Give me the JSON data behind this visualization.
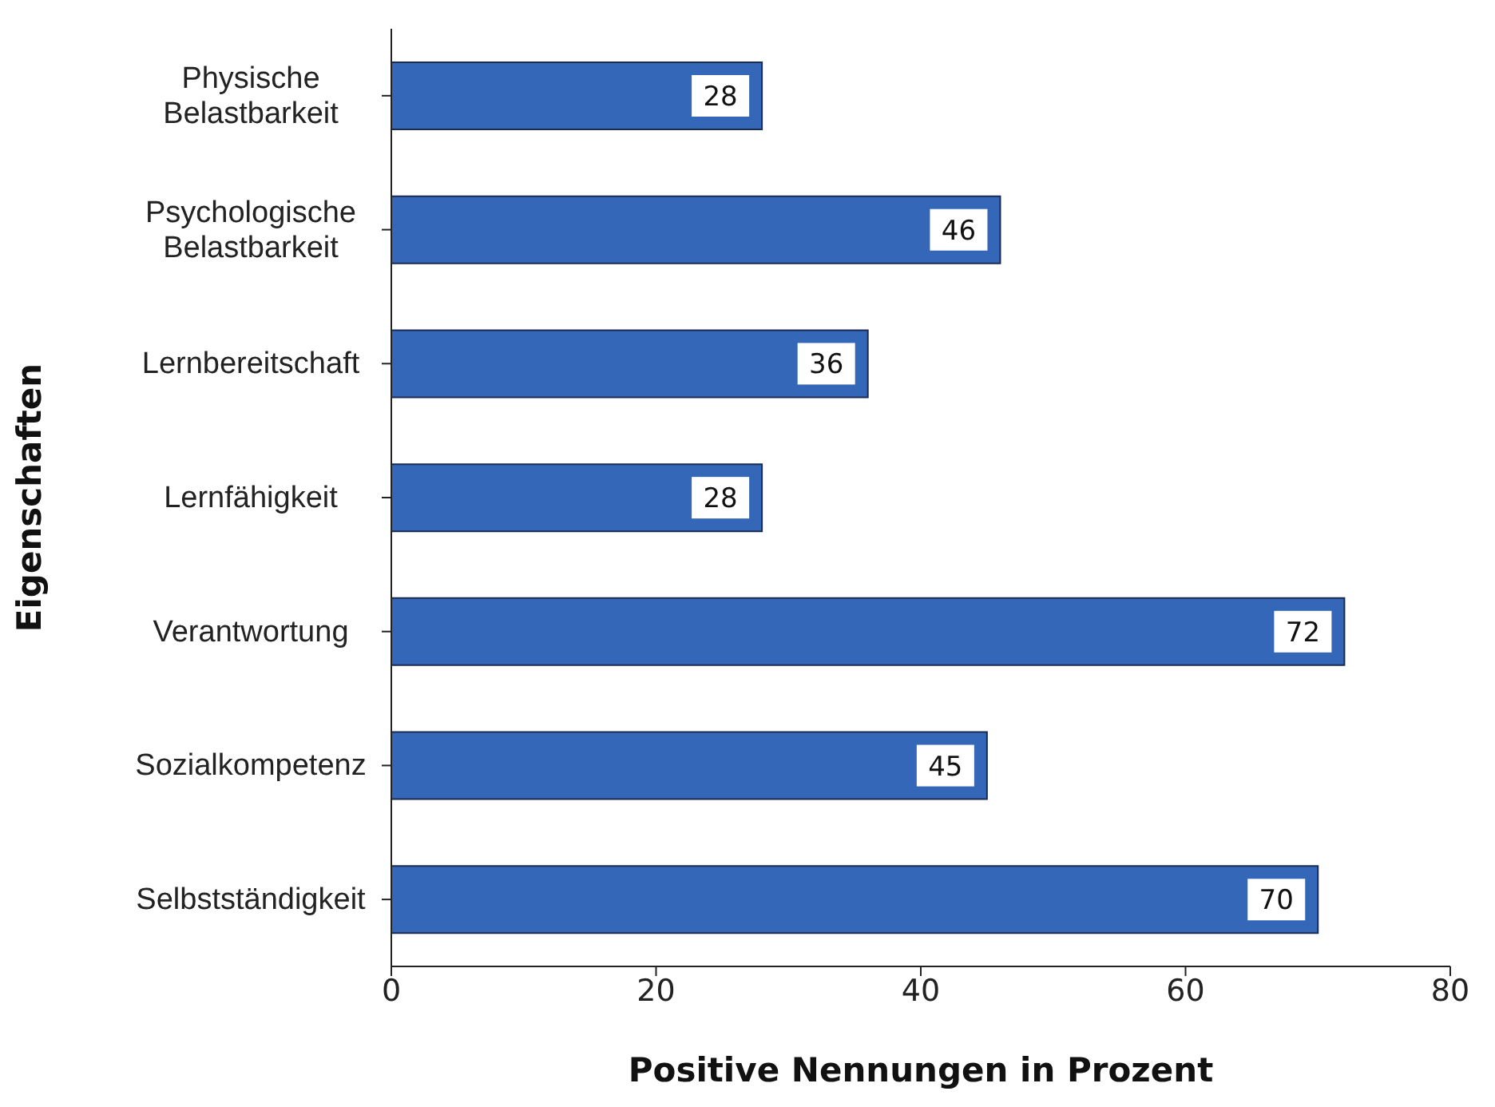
{
  "chart_data": {
    "type": "bar",
    "orientation": "horizontal",
    "ylabel": "Eigenschaften",
    "xlabel": "Positive Nennungen in Prozent",
    "categories": [
      "Physische Belastbarkeit",
      "Psychologische Belastbarkeit",
      "Lernbereitschaft",
      "Lernfähigkeit",
      "Verantwortung",
      "Sozialkompetenz",
      "Selbstständigkeit"
    ],
    "values": [
      28,
      46,
      36,
      28,
      72,
      45,
      70
    ],
    "color": "#3567b8",
    "xlim": [
      0,
      80
    ],
    "xticks": [
      0,
      20,
      40,
      60,
      80
    ],
    "data_labels": true
  }
}
